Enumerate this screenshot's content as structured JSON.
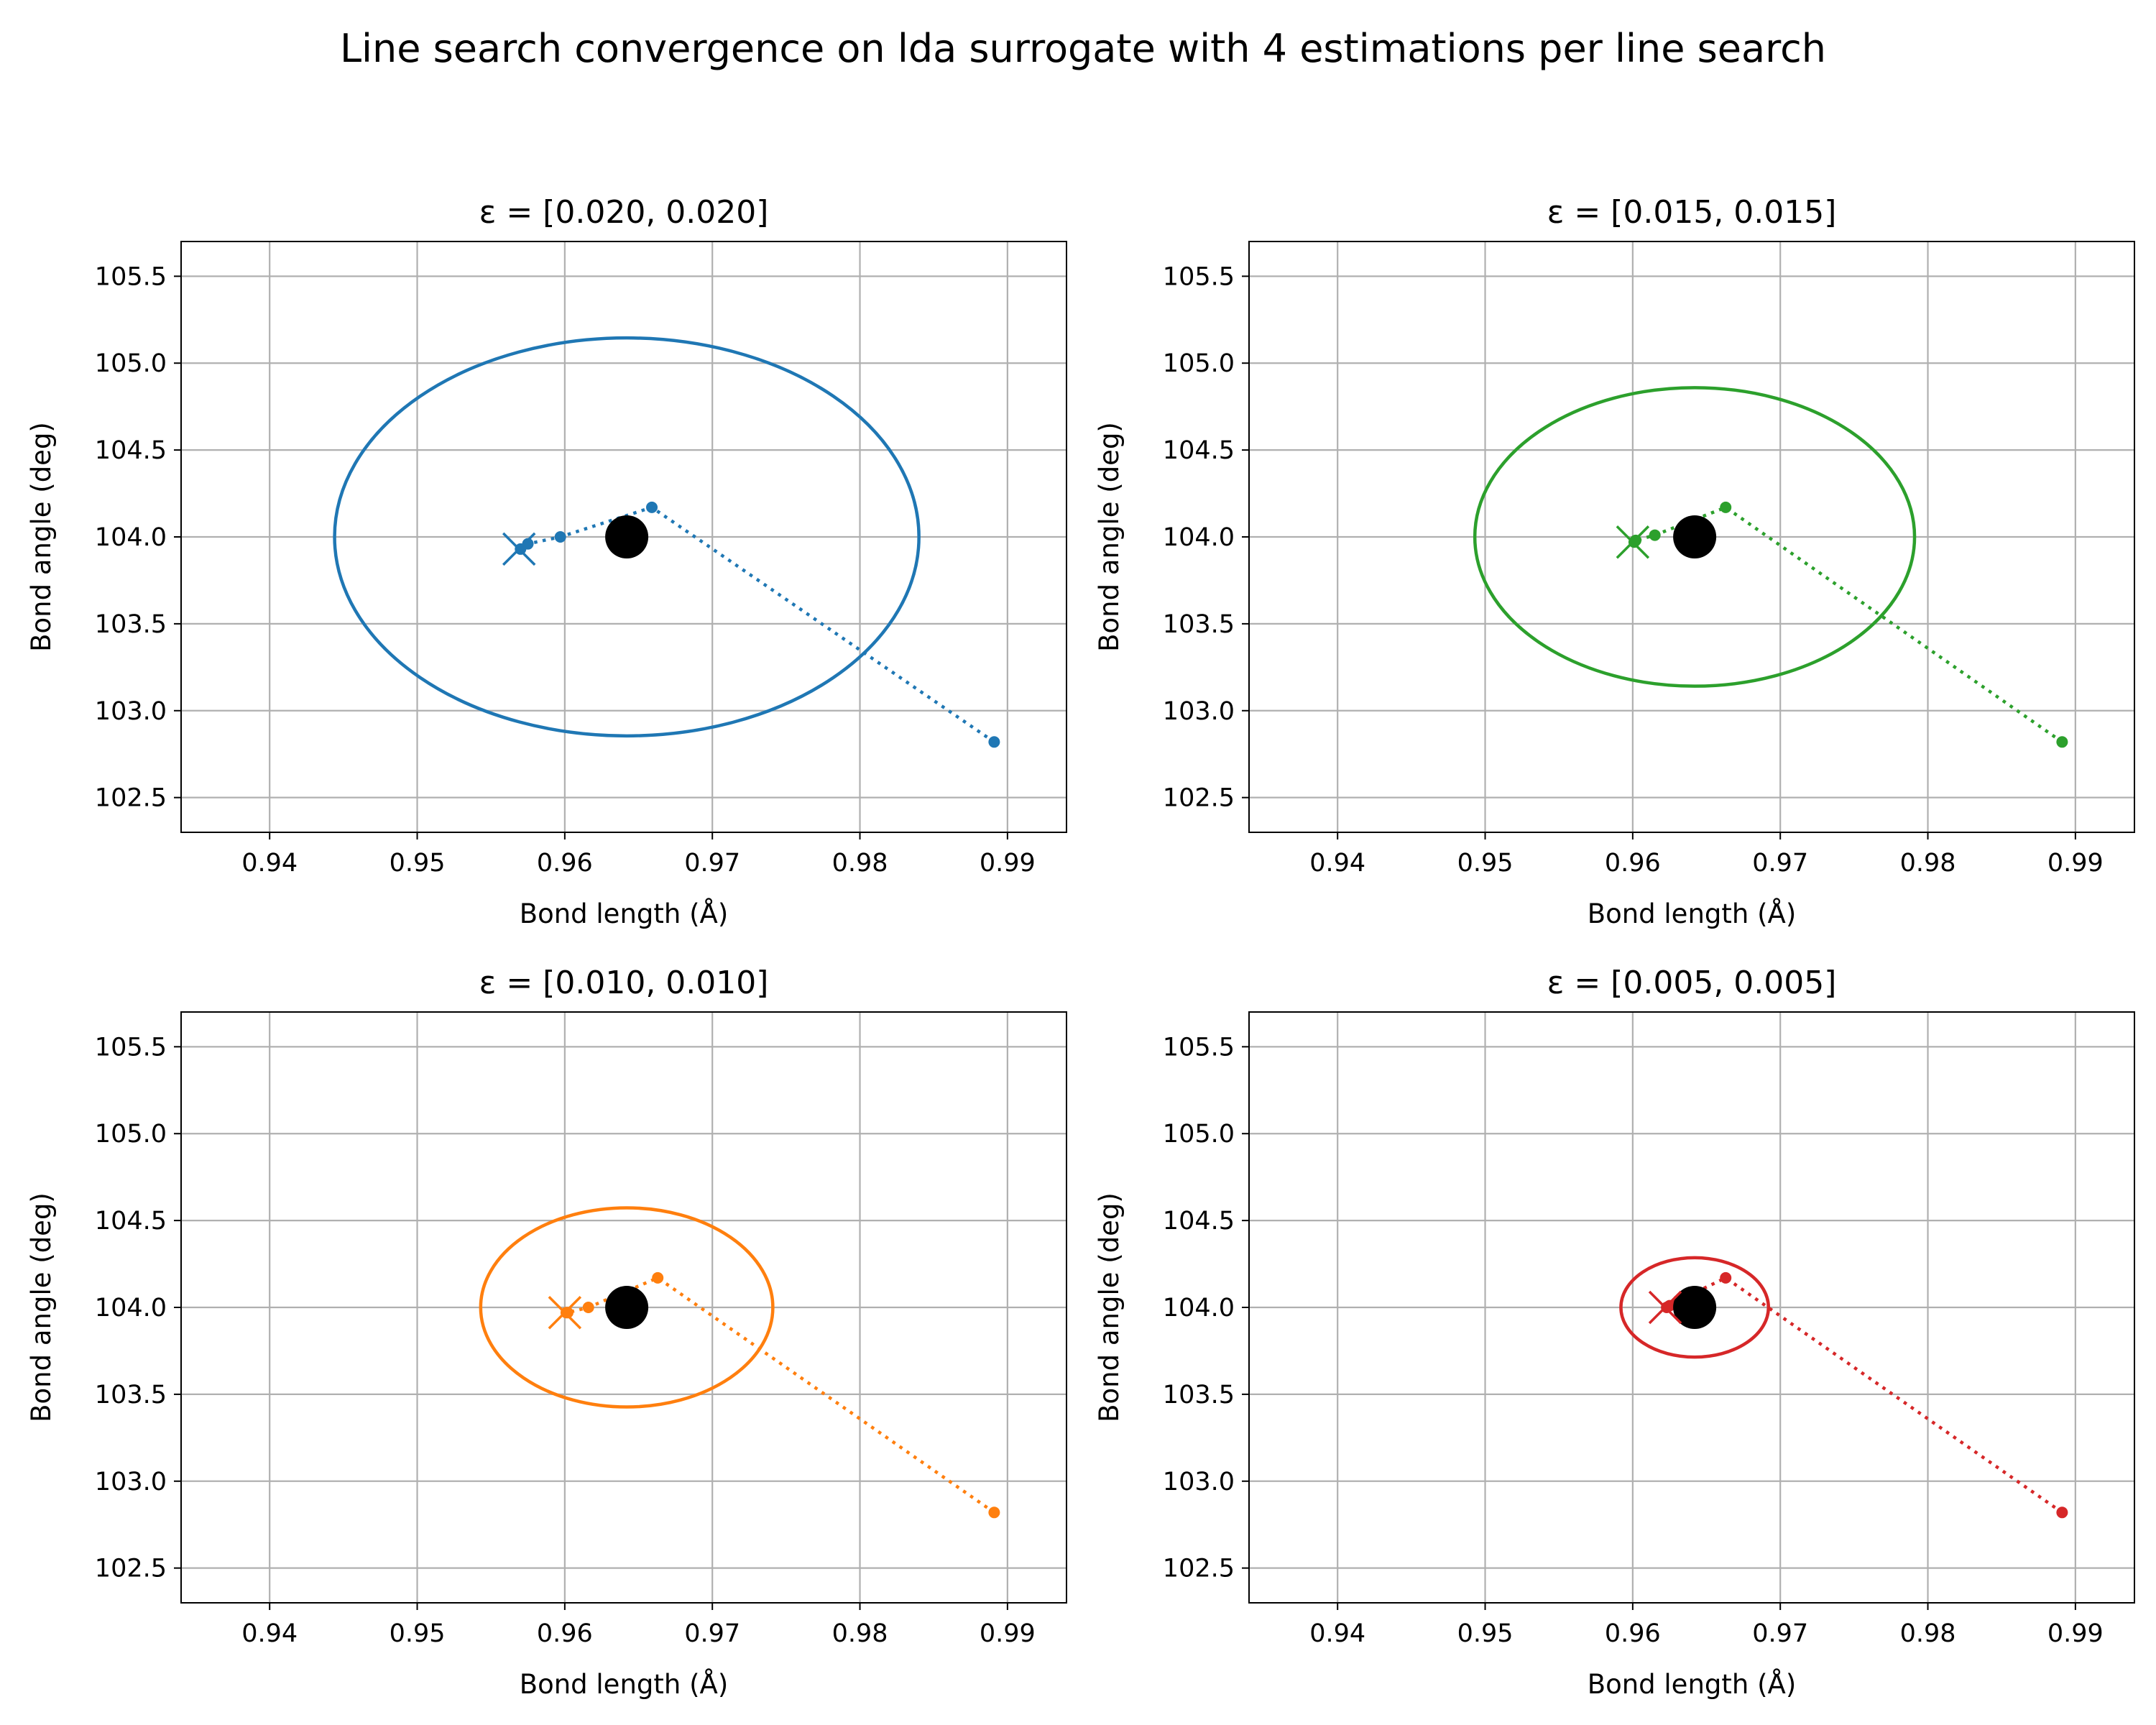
{
  "figure": {
    "title": "Line search convergence on lda surrogate with 4 estimations per line search"
  },
  "chart_data": [
    {
      "type": "line",
      "title": "ε = [0.020, 0.020]",
      "xlabel": "Bond length (Å)",
      "ylabel": "Bond angle (deg)",
      "xlim": [
        0.934,
        0.994
      ],
      "ylim": [
        102.3,
        105.7
      ],
      "xticks": [
        0.94,
        0.95,
        0.96,
        0.97,
        0.98,
        0.99
      ],
      "yticks": [
        102.5,
        103.0,
        103.5,
        104.0,
        104.5,
        105.0,
        105.5
      ],
      "grid": true,
      "color": "#1f77b4",
      "ellipse": {
        "center": [
          0.9642,
          104.0
        ],
        "semi_axes": [
          0.0198,
          1.145
        ]
      },
      "path": {
        "x": [
          0.9891,
          0.9659,
          0.9597,
          0.9575,
          0.957
        ],
        "y": [
          102.82,
          104.17,
          104.0,
          103.96,
          103.93
        ]
      },
      "final_estimate": [
        0.9569,
        103.93
      ],
      "target": [
        0.9642,
        104.0
      ]
    },
    {
      "type": "line",
      "title": "ε = [0.015, 0.015]",
      "xlabel": "Bond length (Å)",
      "ylabel": "Bond angle (deg)",
      "xlim": [
        0.934,
        0.994
      ],
      "ylim": [
        102.3,
        105.7
      ],
      "xticks": [
        0.94,
        0.95,
        0.96,
        0.97,
        0.98,
        0.99
      ],
      "yticks": [
        102.5,
        103.0,
        103.5,
        104.0,
        104.5,
        105.0,
        105.5
      ],
      "grid": true,
      "color": "#2ca02c",
      "ellipse": {
        "center": [
          0.9642,
          104.0
        ],
        "semi_axes": [
          0.0149,
          0.859
        ]
      },
      "path": {
        "x": [
          0.9891,
          0.9663,
          0.9615,
          0.9602,
          0.9601
        ],
        "y": [
          102.82,
          104.17,
          104.01,
          103.98,
          103.97
        ]
      },
      "final_estimate": [
        0.96,
        103.97
      ],
      "target": [
        0.9642,
        104.0
      ]
    },
    {
      "type": "line",
      "title": "ε = [0.010, 0.010]",
      "xlabel": "Bond length (Å)",
      "ylabel": "Bond angle (deg)",
      "xlim": [
        0.934,
        0.994
      ],
      "ylim": [
        102.3,
        105.7
      ],
      "xticks": [
        0.94,
        0.95,
        0.96,
        0.97,
        0.98,
        0.99
      ],
      "yticks": [
        102.5,
        103.0,
        103.5,
        104.0,
        104.5,
        105.0,
        105.5
      ],
      "grid": true,
      "color": "#ff7f0e",
      "ellipse": {
        "center": [
          0.9642,
          104.0
        ],
        "semi_axes": [
          0.0099,
          0.573
        ]
      },
      "path": {
        "x": [
          0.9891,
          0.9663,
          0.9616,
          0.9602,
          0.9601
        ],
        "y": [
          102.82,
          104.17,
          104.0,
          103.97,
          103.97
        ]
      },
      "final_estimate": [
        0.96,
        103.97
      ],
      "target": [
        0.9642,
        104.0
      ]
    },
    {
      "type": "line",
      "title": "ε = [0.005, 0.005]",
      "xlabel": "Bond length (Å)",
      "ylabel": "Bond angle (deg)",
      "xlim": [
        0.934,
        0.994
      ],
      "ylim": [
        102.3,
        105.7
      ],
      "xticks": [
        0.94,
        0.95,
        0.96,
        0.97,
        0.98,
        0.99
      ],
      "yticks": [
        102.5,
        103.0,
        103.5,
        104.0,
        104.5,
        105.0,
        105.5
      ],
      "grid": true,
      "color": "#d62728",
      "ellipse": {
        "center": [
          0.9642,
          104.0
        ],
        "semi_axes": [
          0.005,
          0.286
        ]
      },
      "path": {
        "x": [
          0.9891,
          0.9663,
          0.9631,
          0.9625,
          0.9623
        ],
        "y": [
          102.82,
          104.17,
          104.04,
          104.01,
          104.0
        ]
      },
      "final_estimate": [
        0.9622,
        104.0
      ],
      "target": [
        0.9642,
        104.0
      ]
    }
  ]
}
